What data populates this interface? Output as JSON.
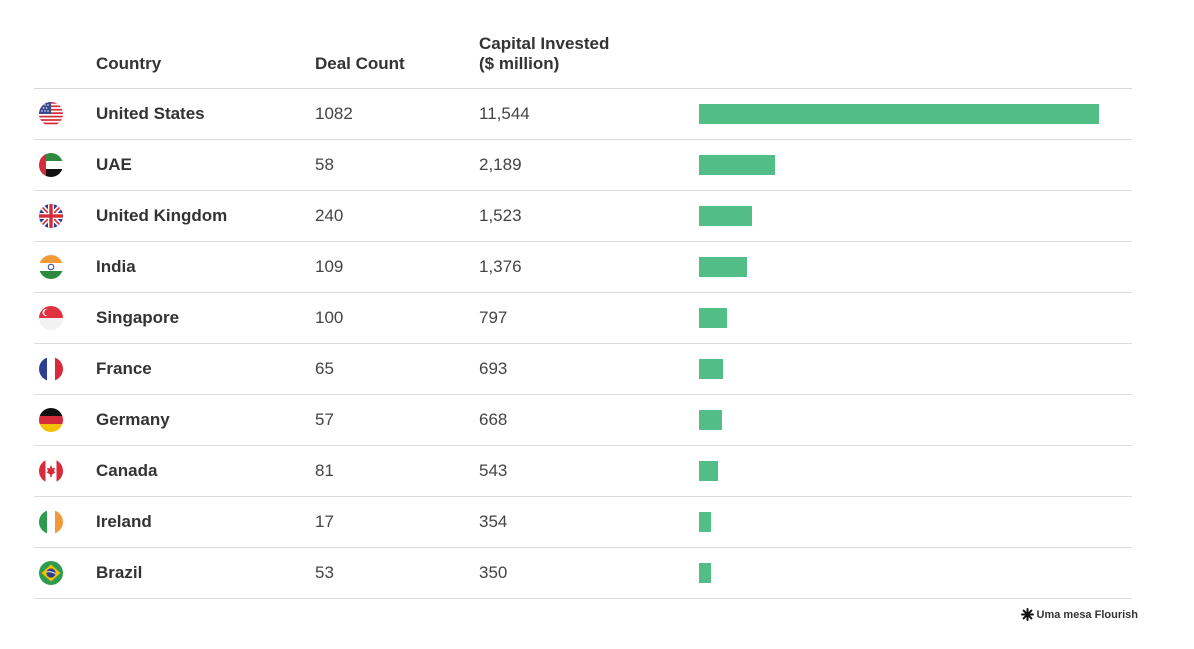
{
  "chart_data": {
    "type": "table",
    "columns": [
      "Country",
      "Deal Count",
      "Capital Invested\n($ million)"
    ],
    "bar_color": "#52bd86",
    "bar_max": 11544,
    "rows": [
      {
        "country": "United States",
        "deal_count": "1082",
        "capital": "11,544",
        "value": 11544,
        "flag": "us-flag-icon"
      },
      {
        "country": "UAE",
        "deal_count": "58",
        "capital": "2,189",
        "value": 2189,
        "flag": "uae-flag-icon"
      },
      {
        "country": "United Kingdom",
        "deal_count": "240",
        "capital": "1,523",
        "value": 1523,
        "flag": "uk-flag-icon"
      },
      {
        "country": "India",
        "deal_count": "109",
        "capital": "1,376",
        "value": 1376,
        "flag": "india-flag-icon"
      },
      {
        "country": "Singapore",
        "deal_count": "100",
        "capital": "797",
        "value": 797,
        "flag": "singapore-flag-icon"
      },
      {
        "country": "France",
        "deal_count": "65",
        "capital": "693",
        "value": 693,
        "flag": "france-flag-icon"
      },
      {
        "country": "Germany",
        "deal_count": "57",
        "capital": "668",
        "value": 668,
        "flag": "germany-flag-icon"
      },
      {
        "country": "Canada",
        "deal_count": "81",
        "capital": "543",
        "value": 543,
        "flag": "canada-flag-icon"
      },
      {
        "country": "Ireland",
        "deal_count": "17",
        "capital": "354",
        "value": 354,
        "flag": "ireland-flag-icon"
      },
      {
        "country": "Brazil",
        "deal_count": "53",
        "capital": "350",
        "value": 350,
        "flag": "brazil-flag-icon"
      }
    ]
  },
  "credit": {
    "label": "Uma mesa Flourish",
    "icon": "flourish-logo-icon"
  }
}
